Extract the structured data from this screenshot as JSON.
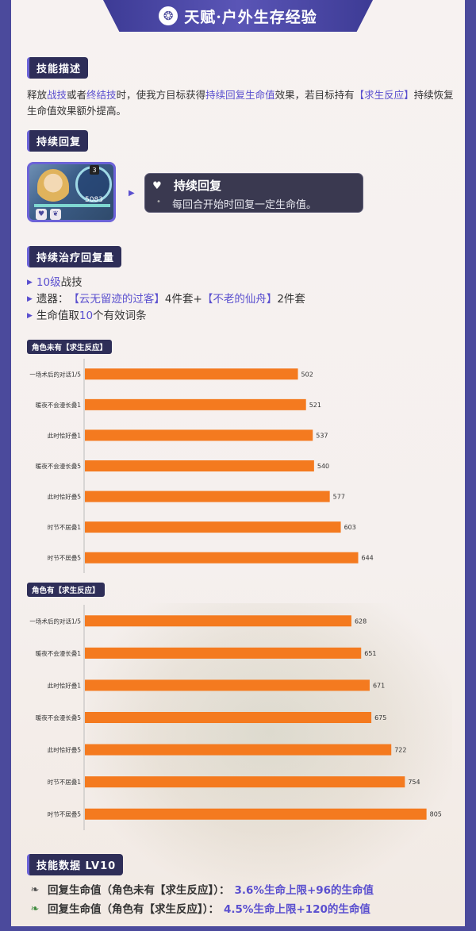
{
  "header": {
    "icon": "talent-emblem-icon",
    "title": "天赋·户外生存经验"
  },
  "skill_desc": {
    "tag": "技能描述",
    "segments": [
      {
        "t": "释放",
        "hl": false
      },
      {
        "t": "战技",
        "hl": true
      },
      {
        "t": "或者",
        "hl": false
      },
      {
        "t": "终结技",
        "hl": true
      },
      {
        "t": "时，使我方目标获得",
        "hl": false
      },
      {
        "t": "持续回复生命值",
        "hl": true
      },
      {
        "t": "效果，若目标持有",
        "hl": false
      },
      {
        "t": "【求生反应】",
        "hl": true
      },
      {
        "t": "持续恢复生命值效果额外提高。",
        "hl": false
      }
    ]
  },
  "sustain": {
    "tag": "持续回复",
    "portrait_value": "5083",
    "portrait_level": "3",
    "card_title": "持续回复",
    "card_desc": "每回合开始时回复一定生命值。"
  },
  "heal_amount": {
    "tag": "持续治疗回复量",
    "items": [
      {
        "parts": [
          {
            "t": "10级",
            "hl": true
          },
          {
            "t": "战技",
            "hl": false
          }
        ]
      },
      {
        "parts": [
          {
            "t": "遗器：",
            "hl": false
          },
          {
            "t": "【云无留迹的过客】",
            "hl": true
          },
          {
            "t": "4件套+",
            "hl": false
          },
          {
            "t": "【不老的仙舟】",
            "hl": true
          },
          {
            "t": "2件套",
            "hl": false
          }
        ]
      },
      {
        "parts": [
          {
            "t": "生命值取",
            "hl": false
          },
          {
            "t": "10",
            "hl": true
          },
          {
            "t": "个有效词条",
            "hl": false
          }
        ]
      }
    ]
  },
  "chart_data": [
    {
      "type": "bar",
      "orientation": "horizontal",
      "title": "角色未有【求生反应】",
      "categories": [
        "一场术后的对话1/5",
        "暖夜不会漫长叠1",
        "此时恰好叠1",
        "暖夜不会漫长叠5",
        "此时恰好叠5",
        "时节不居叠1",
        "时节不居叠5"
      ],
      "values": [
        502,
        521,
        537,
        540,
        577,
        603,
        644
      ],
      "xlim": [
        0,
        830
      ],
      "grid": false,
      "color": "#f47a1f"
    },
    {
      "type": "bar",
      "orientation": "horizontal",
      "title": "角色有【求生反应】",
      "categories": [
        "一场术后的对话1/5",
        "暖夜不会漫长叠1",
        "此时恰好叠1",
        "暖夜不会漫长叠5",
        "此时恰好叠5",
        "时节不居叠1",
        "时节不居叠5"
      ],
      "values": [
        628,
        651,
        671,
        675,
        722,
        754,
        805
      ],
      "xlim": [
        0,
        830
      ],
      "grid": false,
      "color": "#f47a1f"
    }
  ],
  "skill_data": {
    "tag": "技能数据 LV10",
    "rows": [
      {
        "icon": "leaf-heal-icon",
        "label": "回复生命值（角色未有【求生反应】）：",
        "value": "3.6%生命上限+96的生命值"
      },
      {
        "icon": "leaf-heal-plus-icon",
        "label": "回复生命值（角色有【求生反应】）：",
        "value": "4.5%生命上限+120的生命值"
      }
    ]
  },
  "colors": {
    "frame": "#4b4a9c",
    "accent": "#5a4fcf",
    "bar": "#f47a1f",
    "tag_bg": "#2e2e58"
  }
}
